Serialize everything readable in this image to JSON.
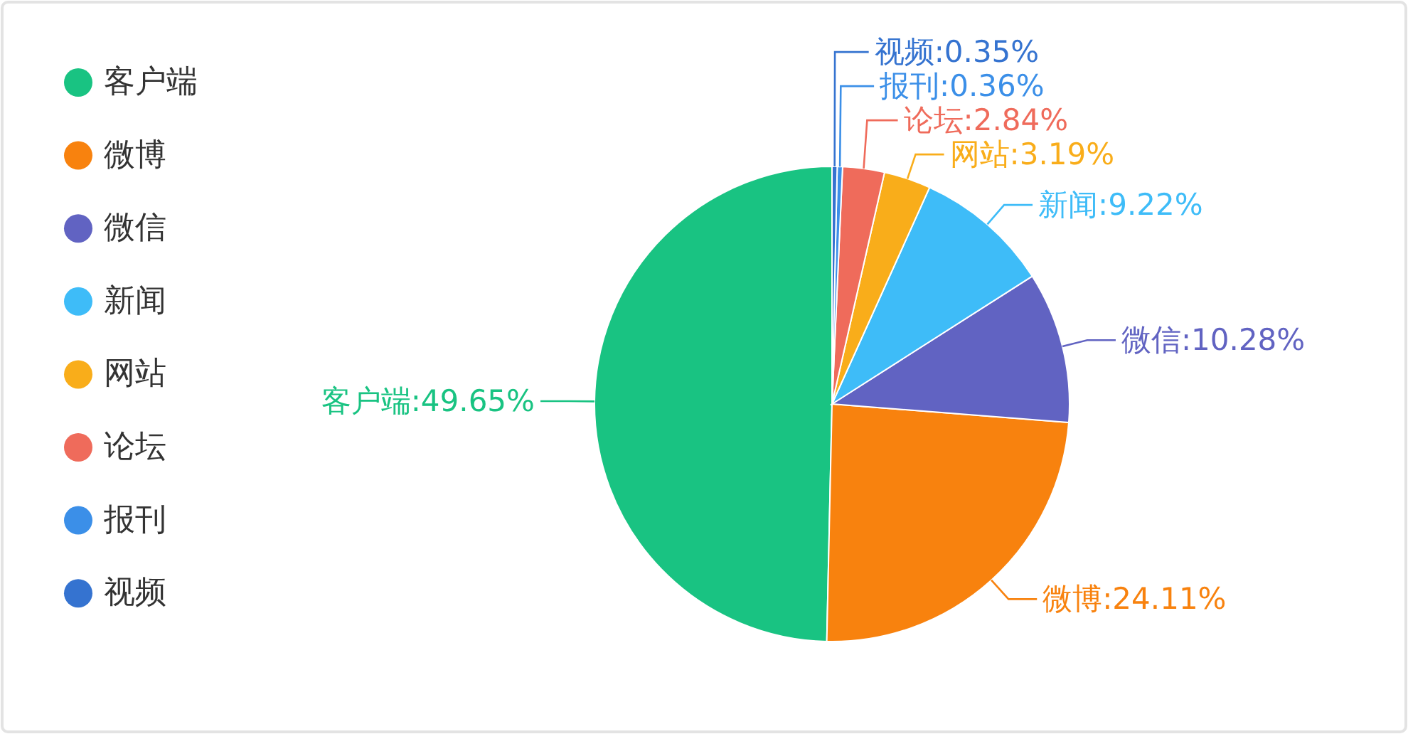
{
  "chart_data": {
    "type": "pie",
    "categories": [
      "客户端",
      "微博",
      "微信",
      "新闻",
      "网站",
      "论坛",
      "报刊",
      "视频"
    ],
    "values": [
      49.65,
      24.11,
      10.28,
      9.22,
      3.19,
      2.84,
      0.36,
      0.35
    ],
    "colors": [
      "#19c382",
      "#f8820e",
      "#6163c2",
      "#3ebcf8",
      "#f9ad1a",
      "#ef6b5b",
      "#3b8fe8",
      "#3573d0"
    ],
    "value_labels": [
      "客户端:49.65%",
      "微博:24.11%",
      "微信:10.28%",
      "新闻:9.22%",
      "网站:3.19%",
      "论坛:2.84%",
      "报刊:0.36%",
      "视频:0.35%"
    ],
    "legend": "left"
  }
}
